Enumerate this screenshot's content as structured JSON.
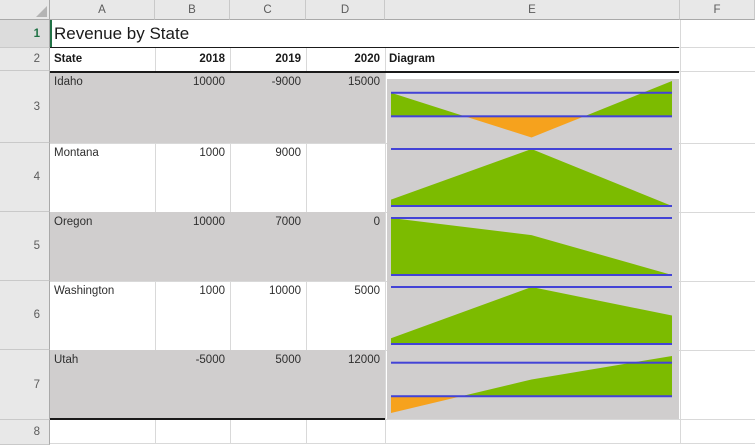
{
  "sheet": {
    "title": "Revenue by State",
    "column_headers": [
      "A",
      "B",
      "C",
      "D",
      "E",
      "F"
    ],
    "row_headers": [
      "1",
      "2",
      "3",
      "4",
      "5",
      "6",
      "7",
      "8"
    ],
    "active_row_header": "1"
  },
  "table": {
    "headers": {
      "state": "State",
      "y2018": "2018",
      "y2019": "2019",
      "y2020": "2020",
      "diagram": "Diagram"
    },
    "rows": [
      {
        "state": "Idaho",
        "y2018": "10000",
        "y2019": "-9000",
        "y2020": "15000"
      },
      {
        "state": "Montana",
        "y2018": "1000",
        "y2019": "9000",
        "y2020": ""
      },
      {
        "state": "Oregon",
        "y2018": "10000",
        "y2019": "7000",
        "y2020": "0"
      },
      {
        "state": "Washington",
        "y2018": "1000",
        "y2019": "10000",
        "y2020": "5000"
      },
      {
        "state": "Utah",
        "y2018": "-5000",
        "y2019": "5000",
        "y2020": "12000"
      }
    ]
  },
  "chart_data": [
    {
      "type": "area",
      "state": "Idaho",
      "x": [
        "2018",
        "2019",
        "2020"
      ],
      "values": [
        10000,
        -9000,
        15000
      ],
      "baseline": 0,
      "reference_lines": [
        0,
        10000
      ],
      "positive_color": "#7CBB00",
      "negative_color": "#F6A21D",
      "line_color": "#4343D6",
      "plot_background": "#D0CECE"
    },
    {
      "type": "area",
      "state": "Montana",
      "x": [
        "2018",
        "2019",
        "2020"
      ],
      "values": [
        1000,
        9000,
        null
      ],
      "baseline": 0,
      "reference_lines": [
        0,
        10000
      ],
      "positive_color": "#7CBB00",
      "negative_color": "#F6A21D",
      "line_color": "#4343D6",
      "plot_background": "#D0CECE"
    },
    {
      "type": "area",
      "state": "Oregon",
      "x": [
        "2018",
        "2019",
        "2020"
      ],
      "values": [
        10000,
        7000,
        0
      ],
      "baseline": 0,
      "reference_lines": [
        0,
        10000
      ],
      "positive_color": "#7CBB00",
      "negative_color": "#F6A21D",
      "line_color": "#4343D6",
      "plot_background": "#D0CECE"
    },
    {
      "type": "area",
      "state": "Washington",
      "x": [
        "2018",
        "2019",
        "2020"
      ],
      "values": [
        1000,
        10000,
        5000
      ],
      "baseline": 0,
      "reference_lines": [
        0,
        10000
      ],
      "positive_color": "#7CBB00",
      "negative_color": "#F6A21D",
      "line_color": "#4343D6",
      "plot_background": "#D0CECE"
    },
    {
      "type": "area",
      "state": "Utah",
      "x": [
        "2018",
        "2019",
        "2020"
      ],
      "values": [
        -5000,
        5000,
        12000
      ],
      "baseline": 0,
      "reference_lines": [
        0,
        10000
      ],
      "positive_color": "#7CBB00",
      "negative_color": "#F6A21D",
      "line_color": "#4343D6",
      "plot_background": "#D0CECE"
    }
  ],
  "colors": {
    "selection_green": "#217346",
    "banded_row_gray": "#D0CECE",
    "gridline": "#D9D9D9",
    "header_bg": "#E8E8E8",
    "border_black": "#1a1a1a"
  }
}
